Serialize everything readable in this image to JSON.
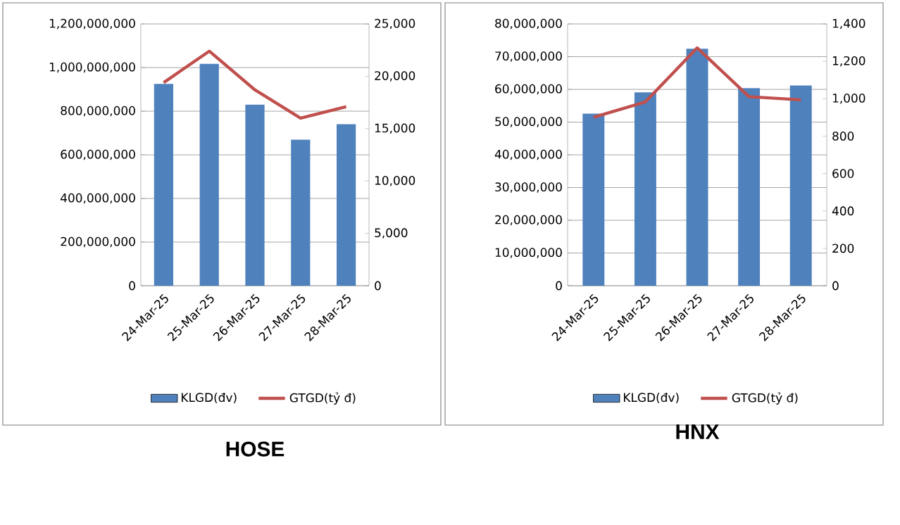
{
  "chart_data": [
    {
      "type": "bar",
      "title": "HOSE",
      "categories": [
        "24-Mar-25",
        "25-Mar-25",
        "26-Mar-25",
        "27-Mar-25",
        "28-Mar-25"
      ],
      "series": [
        {
          "name": "KLGD(đv)",
          "color": "#4f81bd",
          "values": [
            925000000,
            1017000000,
            830000000,
            669000000,
            740000000
          ]
        },
        {
          "name": "GTGD(tỷ đ)",
          "type": "line",
          "axis": "y2",
          "color": "#c0504d",
          "values": [
            19400,
            22400,
            18700,
            16000,
            17100
          ]
        }
      ],
      "ylim": [
        0,
        1200000000
      ],
      "yticks": [
        0,
        {
          "value": 200000000,
          "label": "200,000,000"
        },
        {
          "value": 400000000,
          "label": "400,000,000"
        },
        {
          "value": 600000000,
          "label": "600,000,000"
        },
        {
          "value": 800000000,
          "label": "800,000,000"
        },
        {
          "value": 1000000000,
          "label": "1,000,000,000"
        },
        {
          "value": 1200000000,
          "label": "1,200,000,000"
        }
      ],
      "y2lim": [
        0,
        25000
      ],
      "y2ticks": [
        0,
        {
          "value": 5000,
          "label": "5,000"
        },
        {
          "value": 10000,
          "label": "10,000"
        },
        {
          "value": 15000,
          "label": "15,000"
        },
        {
          "value": 20000,
          "label": "20,000"
        },
        {
          "value": 25000,
          "label": "25,000"
        }
      ],
      "grid": "y",
      "legend": "bottom"
    },
    {
      "type": "bar",
      "title": "HNX",
      "categories": [
        "24-Mar-25",
        "25-Mar-25",
        "26-Mar-25",
        "27-Mar-25",
        "28-Mar-25"
      ],
      "series": [
        {
          "name": "KLGD(đv)",
          "color": "#4f81bd",
          "values": [
            52600000,
            59100000,
            72400000,
            60400000,
            61200000
          ]
        },
        {
          "name": "GTGD(tỷ đ)",
          "type": "line",
          "axis": "y2",
          "color": "#c0504d",
          "values": [
            901,
            983,
            1272,
            1011,
            994
          ]
        }
      ],
      "ylim": [
        0,
        80000000
      ],
      "yticks": [
        0,
        {
          "value": 10000000,
          "label": "10,000,000"
        },
        {
          "value": 20000000,
          "label": "20,000,000"
        },
        {
          "value": 30000000,
          "label": "30,000,000"
        },
        {
          "value": 40000000,
          "label": "40,000,000"
        },
        {
          "value": 50000000,
          "label": "50,000,000"
        },
        {
          "value": 60000000,
          "label": "60,000,000"
        },
        {
          "value": 70000000,
          "label": "70,000,000"
        },
        {
          "value": 80000000,
          "label": "80,000,000"
        }
      ],
      "y2lim": [
        0,
        1400
      ],
      "y2ticks": [
        0,
        {
          "value": 200,
          "label": "200"
        },
        {
          "value": 400,
          "label": "400"
        },
        {
          "value": 600,
          "label": "600"
        },
        {
          "value": 800,
          "label": "800"
        },
        {
          "value": 1000,
          "label": "1,000"
        },
        {
          "value": 1200,
          "label": "1,200"
        },
        {
          "value": 1400,
          "label": "1,400"
        }
      ],
      "grid": "y",
      "legend": "bottom"
    }
  ]
}
